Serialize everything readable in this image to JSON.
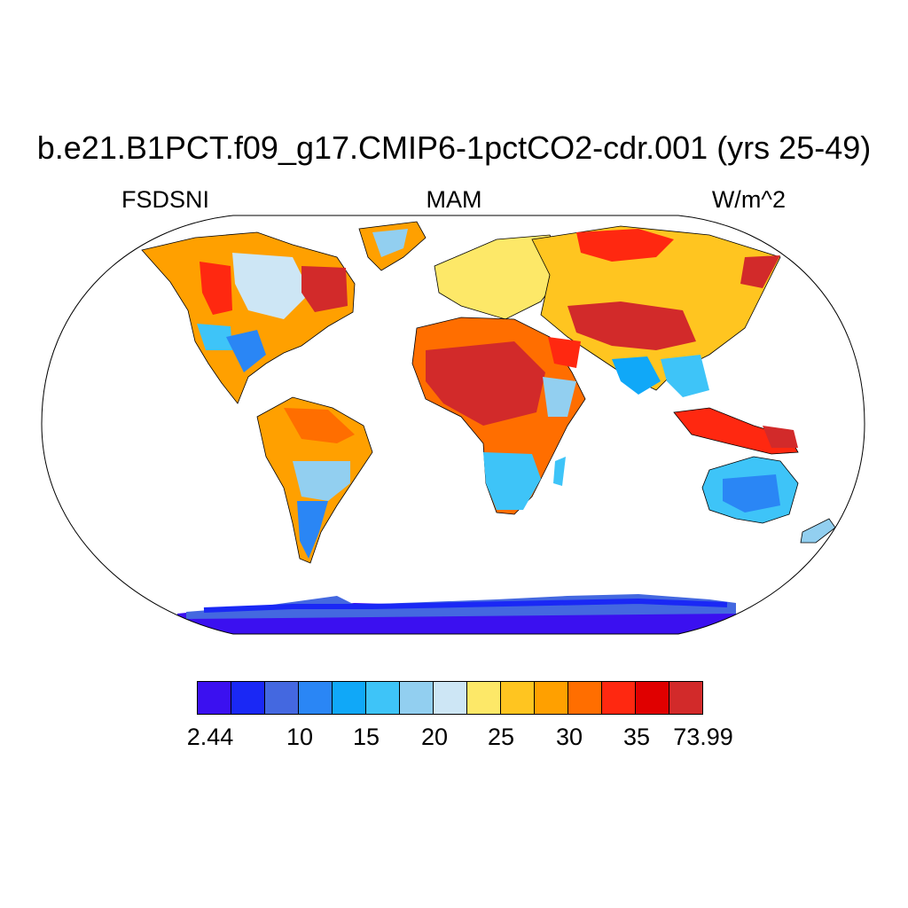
{
  "title": "b.e21.B1PCT.f09_g17.CMIP6-1pctCO2-cdr.001 (yrs 25-49)",
  "left_label": "FSDSNI",
  "center_label": "MAM",
  "right_label": "W/m^2",
  "colorbar": {
    "colors": [
      "#3b10f0",
      "#1a28f5",
      "#4468e0",
      "#2a86f5",
      "#10a8f8",
      "#3ec4f8",
      "#92cff0",
      "#cde6f5",
      "#fde868",
      "#ffc520",
      "#ffa000",
      "#ff6e00",
      "#ff2810",
      "#e00000",
      "#d22a2a"
    ],
    "labels": [
      "2.44",
      "10",
      "15",
      "20",
      "25",
      "30",
      "35",
      "73.99"
    ]
  }
}
